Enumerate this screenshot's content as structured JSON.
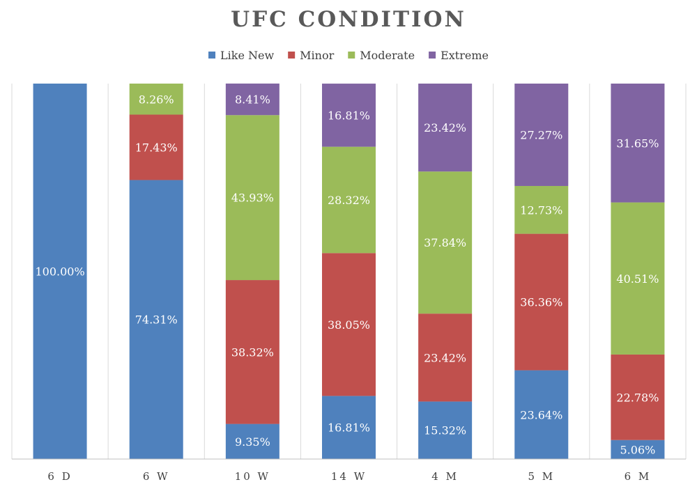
{
  "chart_data": {
    "type": "bar",
    "stacked": true,
    "percent_stacked": true,
    "title": "UFC CONDITION",
    "xlabel": "",
    "ylabel": "",
    "ylim": [
      0,
      100
    ],
    "grid": "vertical separators",
    "legend_position": "top",
    "categories": [
      "6 D",
      "6 W",
      "10 W",
      "14 W",
      "4 M",
      "5 M",
      "6 M"
    ],
    "series": [
      {
        "name": "Like New",
        "color": "#4f81bd",
        "values": [
          100.0,
          74.31,
          9.35,
          16.81,
          15.32,
          23.64,
          5.06
        ],
        "labels": [
          "100.00%",
          "74.31%",
          "9.35%",
          "16.81%",
          "15.32%",
          "23.64%",
          "5.06%"
        ]
      },
      {
        "name": "Minor",
        "color": "#c0504d",
        "values": [
          0,
          17.43,
          38.32,
          38.05,
          23.42,
          36.36,
          22.78
        ],
        "labels": [
          "",
          "17.43%",
          "38.32%",
          "38.05%",
          "23.42%",
          "36.36%",
          "22.78%"
        ]
      },
      {
        "name": "Moderate",
        "color": "#9bbb59",
        "values": [
          0,
          8.26,
          43.93,
          28.32,
          37.84,
          12.73,
          40.51
        ],
        "labels": [
          "",
          "8.26%",
          "43.93%",
          "28.32%",
          "37.84%",
          "12.73%",
          "40.51%"
        ]
      },
      {
        "name": "Extreme",
        "color": "#8064a2",
        "values": [
          0,
          0,
          8.41,
          16.81,
          23.42,
          27.27,
          31.65
        ],
        "labels": [
          "",
          "",
          "8.41%",
          "16.81%",
          "23.42%",
          "27.27%",
          "31.65%"
        ]
      }
    ]
  }
}
